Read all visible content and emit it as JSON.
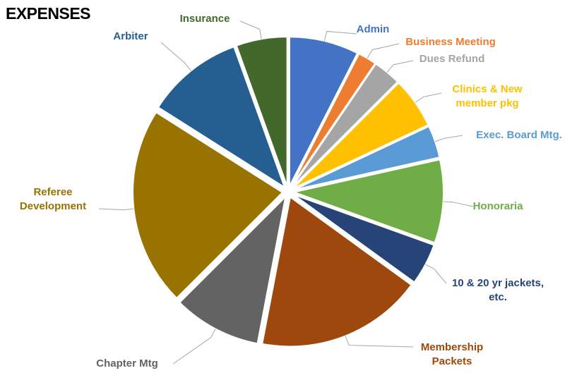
{
  "chart_data": {
    "type": "pie",
    "title": "EXPENSES",
    "categories": [
      "Admin",
      "Business Meeting",
      "Dues Refund",
      "Clinics & New member pkg",
      "Exec. Board Mtg.",
      "Honoraria",
      "10 & 20 yr jackets, etc.",
      "Membership Packets",
      "Chapter Mtg",
      "Referee Development",
      "Arbiter",
      "Insurance"
    ],
    "values": [
      7.5,
      2,
      3,
      5.5,
      3.5,
      9,
      4.5,
      18,
      9.5,
      21.5,
      10.5,
      5.5
    ],
    "colors": [
      "#4472c4",
      "#ed7d31",
      "#a5a5a5",
      "#ffc000",
      "#5b9bd5",
      "#70ad47",
      "#264478",
      "#9e480e",
      "#636363",
      "#997300",
      "#255e91",
      "#43682b"
    ]
  }
}
